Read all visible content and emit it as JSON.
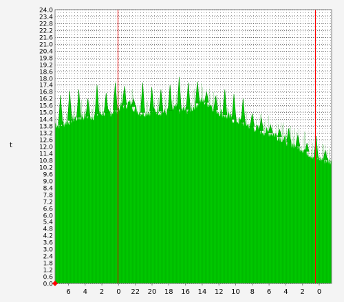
{
  "chart_data": {
    "type": "area",
    "ylabel": "t",
    "ylim": [
      0,
      24
    ],
    "y_ticks": [
      "0.0",
      "0.6",
      "1.2",
      "1.8",
      "2.4",
      "3.0",
      "3.6",
      "4.2",
      "4.8",
      "5.4",
      "6.0",
      "6.6",
      "7.2",
      "7.8",
      "8.4",
      "9.0",
      "9.6",
      "10.2",
      "10.8",
      "11.4",
      "12.0",
      "12.6",
      "13.2",
      "13.8",
      "14.4",
      "15.0",
      "15.6",
      "16.2",
      "16.8",
      "17.4",
      "18.0",
      "18.6",
      "19.2",
      "19.8",
      "20.4",
      "21.0",
      "21.6",
      "22.2",
      "22.8",
      "23.4",
      "24.0"
    ],
    "x_tick_labels": [
      "6",
      "4",
      "2",
      "0",
      "22",
      "20",
      "18",
      "16",
      "14",
      "12",
      "10",
      "8",
      "6",
      "4",
      "2",
      "0"
    ],
    "grid": true,
    "series": [
      {
        "color": "#00c800",
        "baseline": [
          14.0,
          13.9,
          14.1,
          14.3,
          14.5,
          14.6,
          14.7,
          14.6,
          14.8,
          14.9,
          15.0,
          15.0,
          15.2,
          15.5,
          15.7,
          15.8,
          15.3,
          15.0,
          15.0,
          15.1,
          15.2,
          15.1,
          15.0,
          15.2,
          15.4,
          15.2,
          15.2,
          15.3,
          15.7,
          16.0,
          15.9,
          15.7,
          15.2,
          15.0,
          14.7,
          14.5,
          14.3,
          14.2,
          14.0,
          13.8,
          13.6,
          13.4,
          13.3,
          13.2,
          13.0,
          12.8,
          12.5,
          12.3,
          12.1,
          11.9,
          11.6,
          11.3,
          11.0,
          10.9,
          10.8,
          10.7
        ],
        "spike_peaks": [
          16.5,
          16.9,
          17.0,
          16.2,
          17.4,
          16.7,
          17.6,
          17.3,
          16.2,
          17.6,
          17.2,
          17.0,
          17.4,
          18.1,
          17.6,
          17.7,
          16.8,
          16.4,
          17.0,
          16.6,
          16.2,
          14.9,
          14.5,
          13.9,
          13.5,
          13.6,
          13.0,
          12.3,
          12.9,
          11.7
        ],
        "color_edge": "#009600"
      }
    ],
    "markers": {
      "color": "#ff0000",
      "positions_hours_from_start": [
        9.5,
        39.5
      ],
      "span_hours": 42
    }
  }
}
